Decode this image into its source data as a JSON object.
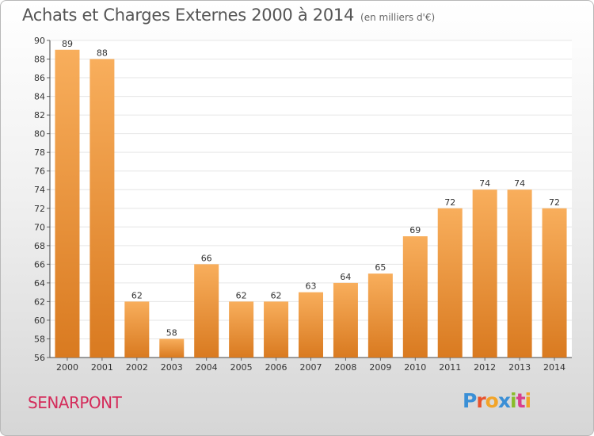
{
  "header": {
    "title": "Achats et Charges Externes 2000 à 2014",
    "subtitle": "(en milliers d'€)"
  },
  "footer": {
    "town": "SENARPONT",
    "logo": {
      "letters": [
        "P",
        "r",
        "o",
        "x",
        "i",
        "t",
        "i"
      ],
      "colors": [
        "#3a8fd6",
        "#e8522c",
        "#f2a428",
        "#3a8fd6",
        "#89bc2a",
        "#d93f8e",
        "#f2a428"
      ]
    }
  },
  "colors": {
    "bar_light": "#f8ae5c",
    "bar_dark": "#d97a20",
    "grid": "#e6e6e6",
    "town": "#d42c5b"
  },
  "chart_data": {
    "type": "bar",
    "title": "Achats et Charges Externes 2000 à 2014",
    "subtitle": "(en milliers d'€)",
    "categories": [
      "2000",
      "2001",
      "2002",
      "2003",
      "2004",
      "2005",
      "2006",
      "2007",
      "2008",
      "2009",
      "2010",
      "2011",
      "2012",
      "2013",
      "2014"
    ],
    "values": [
      89,
      88,
      62,
      58,
      66,
      62,
      62,
      63,
      64,
      65,
      69,
      72,
      74,
      74,
      72
    ],
    "ylim": [
      56,
      90
    ],
    "yticks": [
      56,
      58,
      60,
      62,
      64,
      66,
      68,
      70,
      72,
      74,
      76,
      78,
      80,
      82,
      84,
      86,
      88,
      90
    ],
    "grid": true,
    "xlabel": "",
    "ylabel": ""
  }
}
